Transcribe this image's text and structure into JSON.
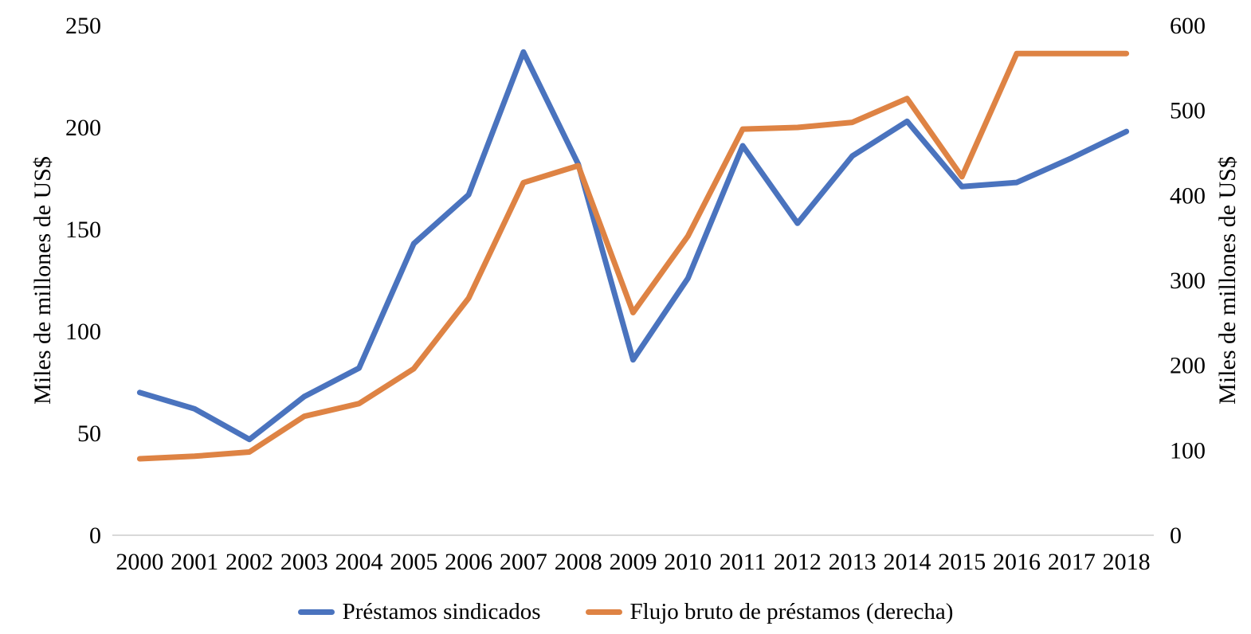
{
  "chart_data": {
    "type": "line",
    "title": "",
    "categories": [
      "2000",
      "2001",
      "2002",
      "2003",
      "2004",
      "2005",
      "2006",
      "2007",
      "2008",
      "2009",
      "2010",
      "2011",
      "2012",
      "2013",
      "2014",
      "2015",
      "2016",
      "2017",
      "2018"
    ],
    "series": [
      {
        "name": "Préstamos sindicados",
        "axis": "left",
        "color": "#4A73BE",
        "values": [
          70,
          62,
          47,
          68,
          82,
          143,
          167,
          237,
          182,
          86,
          126,
          191,
          153,
          186,
          203,
          171,
          173,
          185,
          198
        ]
      },
      {
        "name": "Flujo bruto de préstamos (derecha)",
        "axis": "right",
        "color": "#DE8344",
        "values": [
          90,
          93,
          98,
          140,
          155,
          196,
          279,
          415,
          435,
          262,
          352,
          478,
          480,
          486,
          514,
          422,
          567,
          567,
          567
        ]
      }
    ],
    "left_axis": {
      "title": "Miles de millones de US$",
      "min": 0,
      "max": 250,
      "ticks": [
        0,
        50,
        100,
        150,
        200,
        250
      ]
    },
    "right_axis": {
      "title": "Miles de millones de US$",
      "min": 0,
      "max": 600,
      "ticks": [
        0,
        100,
        200,
        300,
        400,
        500,
        600
      ]
    },
    "grid": false,
    "legend_position": "bottom",
    "axis_line_color": "#D9D9D9",
    "text_color": "#000000"
  }
}
